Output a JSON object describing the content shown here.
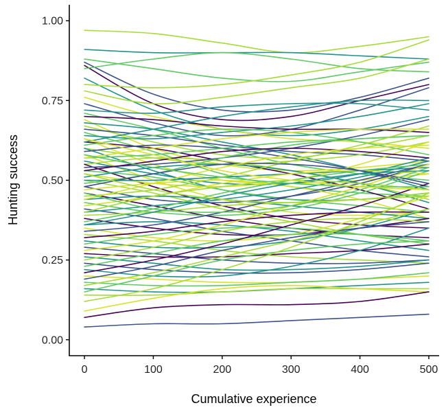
{
  "chart_data": {
    "type": "line",
    "title": "",
    "xlabel": "Cumulative experience",
    "ylabel": "Hunting success",
    "xlim": [
      -22,
      515
    ],
    "ylim": [
      -0.05,
      1.05
    ],
    "xticks": [
      0,
      100,
      200,
      300,
      400,
      500
    ],
    "xtick_labels": [
      "0",
      "100",
      "200",
      "300",
      "400",
      "500"
    ],
    "yticks": [
      0,
      0.25,
      0.5,
      0.75,
      1.0
    ],
    "ytick_labels": [
      "0.00",
      "0.25",
      "0.50",
      "0.75",
      "1.00"
    ],
    "grid": false,
    "legend": "none",
    "x_knots": [
      0,
      100,
      200,
      300,
      400,
      500
    ],
    "palette": [
      "#440154",
      "#3b528b",
      "#21918c",
      "#5ec962",
      "#a5db36",
      "#d6e22b"
    ],
    "series": [
      {
        "values": [
          0.97,
          0.96,
          0.93,
          0.9,
          0.92,
          0.95
        ],
        "color": "#a5db36"
      },
      {
        "values": [
          0.91,
          0.9,
          0.9,
          0.9,
          0.89,
          0.88
        ],
        "color": "#21918c"
      },
      {
        "values": [
          0.88,
          0.85,
          0.82,
          0.81,
          0.84,
          0.87
        ],
        "color": "#5ec962"
      },
      {
        "values": [
          0.87,
          0.77,
          0.72,
          0.72,
          0.76,
          0.82
        ],
        "color": "#3b528b"
      },
      {
        "values": [
          0.86,
          0.74,
          0.69,
          0.7,
          0.75,
          0.8
        ],
        "color": "#440154"
      },
      {
        "values": [
          0.85,
          0.88,
          0.9,
          0.88,
          0.85,
          0.84
        ],
        "color": "#5ec962"
      },
      {
        "values": [
          0.82,
          0.72,
          0.66,
          0.64,
          0.66,
          0.7
        ],
        "color": "#21918c"
      },
      {
        "values": [
          0.8,
          0.79,
          0.8,
          0.83,
          0.87,
          0.94
        ],
        "color": "#a5db36"
      },
      {
        "values": [
          0.78,
          0.74,
          0.76,
          0.79,
          0.82,
          0.88
        ],
        "color": "#a5db36"
      },
      {
        "values": [
          0.76,
          0.7,
          0.66,
          0.63,
          0.62,
          0.6
        ],
        "color": "#d6e22b"
      },
      {
        "values": [
          0.74,
          0.68,
          0.64,
          0.66,
          0.72,
          0.79
        ],
        "color": "#3b528b"
      },
      {
        "values": [
          0.72,
          0.71,
          0.73,
          0.74,
          0.74,
          0.72
        ],
        "color": "#21918c"
      },
      {
        "values": [
          0.71,
          0.66,
          0.6,
          0.55,
          0.52,
          0.5
        ],
        "color": "#5ec962"
      },
      {
        "values": [
          0.7,
          0.69,
          0.67,
          0.66,
          0.66,
          0.65
        ],
        "color": "#440154"
      },
      {
        "values": [
          0.69,
          0.6,
          0.55,
          0.53,
          0.54,
          0.56
        ],
        "color": "#d6e22b"
      },
      {
        "values": [
          0.68,
          0.66,
          0.62,
          0.58,
          0.53,
          0.47
        ],
        "color": "#21918c"
      },
      {
        "values": [
          0.67,
          0.62,
          0.58,
          0.57,
          0.6,
          0.64
        ],
        "color": "#a5db36"
      },
      {
        "values": [
          0.66,
          0.64,
          0.61,
          0.59,
          0.58,
          0.56
        ],
        "color": "#3b528b"
      },
      {
        "values": [
          0.65,
          0.59,
          0.52,
          0.48,
          0.46,
          0.45
        ],
        "color": "#5ec962"
      },
      {
        "values": [
          0.64,
          0.63,
          0.65,
          0.67,
          0.7,
          0.74
        ],
        "color": "#21918c"
      },
      {
        "values": [
          0.63,
          0.55,
          0.5,
          0.49,
          0.5,
          0.52
        ],
        "color": "#d6e22b"
      },
      {
        "values": [
          0.62,
          0.6,
          0.56,
          0.52,
          0.47,
          0.41
        ],
        "color": "#440154"
      },
      {
        "values": [
          0.61,
          0.64,
          0.66,
          0.65,
          0.62,
          0.58
        ],
        "color": "#5ec962"
      },
      {
        "values": [
          0.6,
          0.57,
          0.55,
          0.56,
          0.58,
          0.62
        ],
        "color": "#a5db36"
      },
      {
        "values": [
          0.6,
          0.53,
          0.47,
          0.44,
          0.44,
          0.46
        ],
        "color": "#21918c"
      },
      {
        "values": [
          0.59,
          0.61,
          0.6,
          0.57,
          0.53,
          0.48
        ],
        "color": "#3b528b"
      },
      {
        "values": [
          0.58,
          0.5,
          0.44,
          0.4,
          0.39,
          0.4
        ],
        "color": "#d6e22b"
      },
      {
        "values": [
          0.57,
          0.58,
          0.6,
          0.62,
          0.63,
          0.64
        ],
        "color": "#5ec962"
      },
      {
        "values": [
          0.56,
          0.52,
          0.49,
          0.49,
          0.52,
          0.57
        ],
        "color": "#21918c"
      },
      {
        "values": [
          0.55,
          0.57,
          0.56,
          0.53,
          0.49,
          0.44
        ],
        "color": "#a5db36"
      },
      {
        "values": [
          0.55,
          0.48,
          0.42,
          0.38,
          0.36,
          0.35
        ],
        "color": "#440154"
      },
      {
        "values": [
          0.54,
          0.55,
          0.57,
          0.6,
          0.64,
          0.69
        ],
        "color": "#3b528b"
      },
      {
        "values": [
          0.53,
          0.51,
          0.47,
          0.44,
          0.42,
          0.4
        ],
        "color": "#5ec962"
      },
      {
        "values": [
          0.52,
          0.49,
          0.48,
          0.5,
          0.55,
          0.62
        ],
        "color": "#d6e22b"
      },
      {
        "values": [
          0.51,
          0.54,
          0.55,
          0.53,
          0.49,
          0.43
        ],
        "color": "#21918c"
      },
      {
        "values": [
          0.5,
          0.46,
          0.41,
          0.37,
          0.33,
          0.3
        ],
        "color": "#a5db36"
      },
      {
        "values": [
          0.5,
          0.5,
          0.51,
          0.52,
          0.53,
          0.54
        ],
        "color": "#21918c"
      },
      {
        "values": [
          0.49,
          0.52,
          0.57,
          0.61,
          0.63,
          0.64
        ],
        "color": "#5ec962"
      },
      {
        "values": [
          0.48,
          0.44,
          0.43,
          0.45,
          0.49,
          0.55
        ],
        "color": "#3b528b"
      },
      {
        "values": [
          0.47,
          0.49,
          0.5,
          0.48,
          0.44,
          0.38
        ],
        "color": "#d6e22b"
      },
      {
        "values": [
          0.46,
          0.42,
          0.38,
          0.35,
          0.33,
          0.32
        ],
        "color": "#440154"
      },
      {
        "values": [
          0.45,
          0.47,
          0.51,
          0.56,
          0.61,
          0.67
        ],
        "color": "#a5db36"
      },
      {
        "values": [
          0.44,
          0.45,
          0.44,
          0.42,
          0.4,
          0.38
        ],
        "color": "#21918c"
      },
      {
        "values": [
          0.43,
          0.4,
          0.39,
          0.41,
          0.46,
          0.53
        ],
        "color": "#5ec962"
      },
      {
        "values": [
          0.42,
          0.45,
          0.49,
          0.52,
          0.53,
          0.52
        ],
        "color": "#d6e22b"
      },
      {
        "values": [
          0.41,
          0.38,
          0.34,
          0.31,
          0.28,
          0.26
        ],
        "color": "#3b528b"
      },
      {
        "values": [
          0.4,
          0.42,
          0.44,
          0.47,
          0.51,
          0.56
        ],
        "color": "#21918c"
      },
      {
        "values": [
          0.39,
          0.4,
          0.42,
          0.43,
          0.44,
          0.45
        ],
        "color": "#a5db36"
      },
      {
        "values": [
          0.38,
          0.35,
          0.33,
          0.33,
          0.35,
          0.38
        ],
        "color": "#440154"
      },
      {
        "values": [
          0.37,
          0.41,
          0.46,
          0.5,
          0.53,
          0.55
        ],
        "color": "#5ec962"
      },
      {
        "values": [
          0.36,
          0.37,
          0.36,
          0.34,
          0.31,
          0.28
        ],
        "color": "#21918c"
      },
      {
        "values": [
          0.35,
          0.32,
          0.31,
          0.33,
          0.38,
          0.45
        ],
        "color": "#d6e22b"
      },
      {
        "values": [
          0.34,
          0.36,
          0.4,
          0.45,
          0.5,
          0.55
        ],
        "color": "#3b528b"
      },
      {
        "values": [
          0.33,
          0.31,
          0.28,
          0.26,
          0.25,
          0.24
        ],
        "color": "#a5db36"
      },
      {
        "values": [
          0.32,
          0.34,
          0.37,
          0.39,
          0.4,
          0.4
        ],
        "color": "#440154"
      },
      {
        "values": [
          0.31,
          0.29,
          0.29,
          0.31,
          0.35,
          0.41
        ],
        "color": "#21918c"
      },
      {
        "values": [
          0.3,
          0.33,
          0.35,
          0.35,
          0.33,
          0.3
        ],
        "color": "#5ec962"
      },
      {
        "values": [
          0.29,
          0.27,
          0.25,
          0.24,
          0.24,
          0.25
        ],
        "color": "#3b528b"
      },
      {
        "values": [
          0.28,
          0.31,
          0.36,
          0.42,
          0.48,
          0.55
        ],
        "color": "#d6e22b"
      },
      {
        "values": [
          0.27,
          0.26,
          0.26,
          0.27,
          0.28,
          0.3
        ],
        "color": "#440154"
      },
      {
        "values": [
          0.26,
          0.24,
          0.22,
          0.22,
          0.23,
          0.25
        ],
        "color": "#21918c"
      },
      {
        "values": [
          0.25,
          0.29,
          0.34,
          0.37,
          0.38,
          0.37
        ],
        "color": "#a5db36"
      },
      {
        "values": [
          0.24,
          0.22,
          0.21,
          0.21,
          0.22,
          0.24
        ],
        "color": "#3b528b"
      },
      {
        "values": [
          0.23,
          0.27,
          0.31,
          0.33,
          0.33,
          0.31
        ],
        "color": "#5ec962"
      },
      {
        "values": [
          0.22,
          0.2,
          0.2,
          0.23,
          0.28,
          0.35
        ],
        "color": "#21918c"
      },
      {
        "values": [
          0.21,
          0.25,
          0.3,
          0.36,
          0.42,
          0.49
        ],
        "color": "#440154"
      },
      {
        "values": [
          0.2,
          0.19,
          0.18,
          0.18,
          0.19,
          0.2
        ],
        "color": "#d6e22b"
      },
      {
        "values": [
          0.19,
          0.23,
          0.28,
          0.32,
          0.35,
          0.37
        ],
        "color": "#3b528b"
      },
      {
        "values": [
          0.18,
          0.17,
          0.17,
          0.18,
          0.19,
          0.21
        ],
        "color": "#5ec962"
      },
      {
        "values": [
          0.17,
          0.21,
          0.26,
          0.31,
          0.36,
          0.41
        ],
        "color": "#a5db36"
      },
      {
        "values": [
          0.16,
          0.15,
          0.15,
          0.16,
          0.17,
          0.18
        ],
        "color": "#21918c"
      },
      {
        "values": [
          0.15,
          0.2,
          0.25,
          0.28,
          0.3,
          0.31
        ],
        "color": "#5ec962"
      },
      {
        "values": [
          0.14,
          0.14,
          0.15,
          0.16,
          0.16,
          0.16
        ],
        "color": "#a5db36"
      },
      {
        "values": [
          0.12,
          0.16,
          0.22,
          0.29,
          0.37,
          0.46
        ],
        "color": "#a5db36"
      },
      {
        "values": [
          0.09,
          0.13,
          0.16,
          0.17,
          0.16,
          0.15
        ],
        "color": "#d6e22b"
      },
      {
        "values": [
          0.07,
          0.1,
          0.11,
          0.11,
          0.12,
          0.15
        ],
        "color": "#440154"
      },
      {
        "values": [
          0.04,
          0.05,
          0.05,
          0.06,
          0.07,
          0.08
        ],
        "color": "#3b528b"
      },
      {
        "values": [
          0.62,
          0.66,
          0.7,
          0.73,
          0.75,
          0.75
        ],
        "color": "#21918c"
      },
      {
        "values": [
          0.57,
          0.6,
          0.63,
          0.65,
          0.66,
          0.66
        ],
        "color": "#d6e22b"
      },
      {
        "values": [
          0.53,
          0.56,
          0.59,
          0.6,
          0.59,
          0.57
        ],
        "color": "#440154"
      },
      {
        "values": [
          0.48,
          0.52,
          0.55,
          0.55,
          0.53,
          0.49
        ],
        "color": "#3b528b"
      },
      {
        "values": [
          0.44,
          0.49,
          0.54,
          0.58,
          0.6,
          0.61
        ],
        "color": "#d6e22b"
      },
      {
        "values": [
          0.4,
          0.45,
          0.48,
          0.5,
          0.49,
          0.47
        ],
        "color": "#a5db36"
      },
      {
        "values": [
          0.36,
          0.4,
          0.45,
          0.49,
          0.52,
          0.53
        ],
        "color": "#21918c"
      },
      {
        "values": [
          0.58,
          0.54,
          0.51,
          0.49,
          0.48,
          0.48
        ],
        "color": "#5ec962"
      },
      {
        "values": [
          0.52,
          0.47,
          0.44,
          0.43,
          0.44,
          0.46
        ],
        "color": "#a5db36"
      },
      {
        "values": [
          0.46,
          0.41,
          0.4,
          0.42,
          0.47,
          0.54
        ],
        "color": "#5ec962"
      },
      {
        "values": [
          0.63,
          0.58,
          0.53,
          0.5,
          0.48,
          0.47
        ],
        "color": "#d6e22b"
      }
    ]
  }
}
